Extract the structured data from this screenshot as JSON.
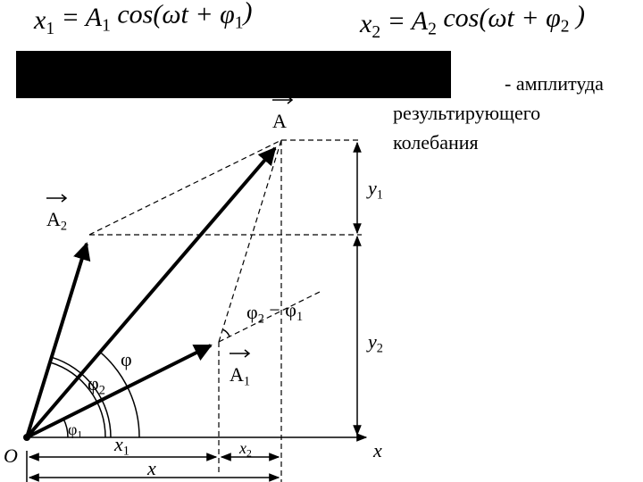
{
  "formulas": [
    [
      "x",
      "1",
      " = A",
      "1",
      " cos(ωt + φ",
      "1",
      ")"
    ],
    [
      "x",
      "2",
      " = A",
      "2",
      " cos(ωt + φ",
      "2",
      " )"
    ]
  ],
  "note": [
    "- амплитуда",
    "результирующего",
    "колебания"
  ],
  "labels": {
    "A": [
      "A"
    ],
    "A1": [
      "A",
      "1"
    ],
    "A2": [
      "A",
      "2"
    ],
    "y1": [
      "y",
      "1"
    ],
    "y2": [
      "y",
      "2"
    ],
    "phi_diff": [
      "φ",
      "2",
      " − φ",
      "1"
    ],
    "phi": [
      "φ"
    ],
    "phi2": [
      "φ",
      "2"
    ],
    "phi1": [
      "φ",
      "1"
    ],
    "O": [
      "O"
    ],
    "x_axis": [
      "x"
    ],
    "x1": [
      "x",
      "1"
    ],
    "x2": [
      "x",
      "2"
    ],
    "x": [
      "x"
    ]
  }
}
